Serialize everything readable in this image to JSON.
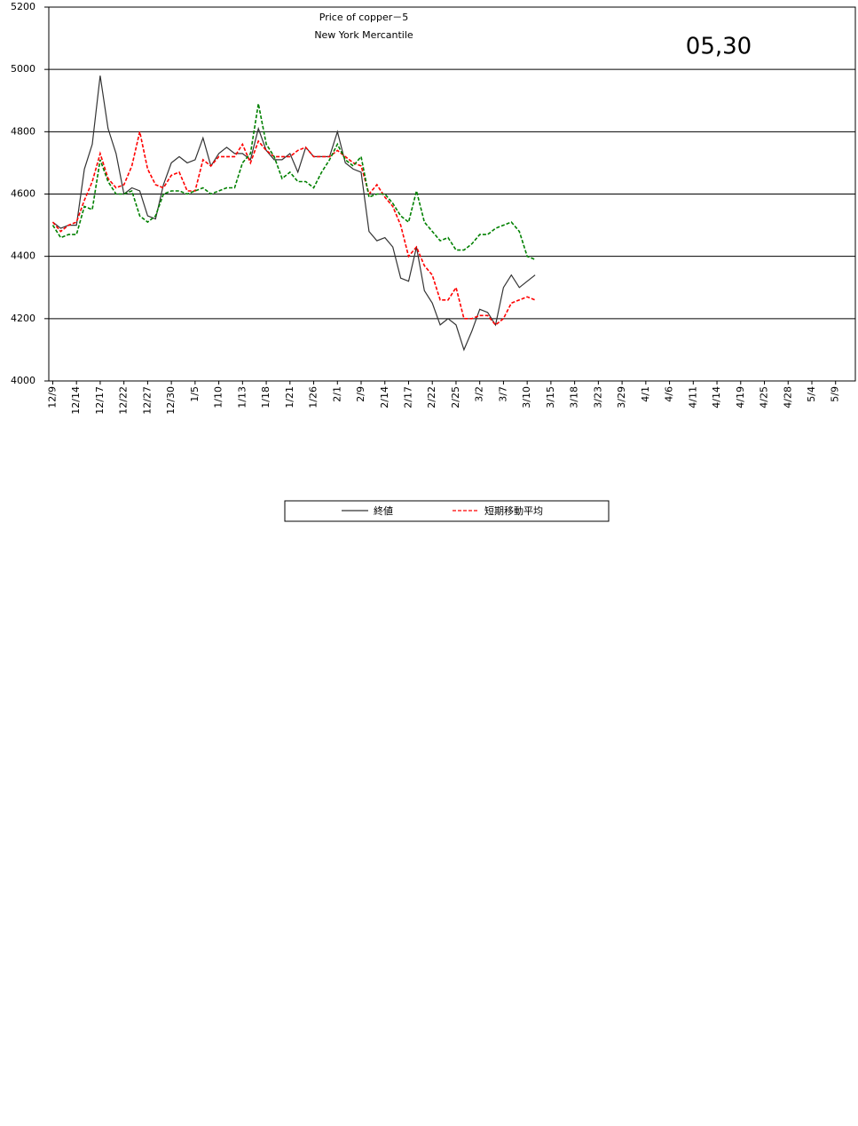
{
  "chart_data": {
    "type": "line",
    "title": "Price of copper－5",
    "subtitle": "New York Mercantile",
    "annotation": "05,30",
    "categories": [
      "12/9",
      null,
      null,
      "12/14",
      null,
      null,
      "12/17",
      null,
      null,
      "12/22",
      null,
      null,
      "12/27",
      null,
      null,
      "12/30",
      null,
      null,
      "1/5",
      null,
      null,
      "1/10",
      null,
      null,
      "1/13",
      null,
      null,
      "1/18",
      null,
      null,
      "1/21",
      null,
      null,
      "1/26",
      null,
      null,
      "2/1",
      null,
      null,
      "2/9",
      null,
      null,
      "2/14",
      null,
      null,
      "2/17",
      null,
      null,
      "2/22",
      null,
      null,
      "2/25",
      null,
      null,
      "3/2",
      null,
      null,
      "3/7",
      null,
      null,
      "3/10",
      null,
      null,
      "3/15",
      null,
      null,
      "3/18",
      null,
      null,
      "3/23",
      null,
      null,
      "3/29",
      null,
      null,
      "4/1",
      null,
      null,
      "4/6",
      null,
      null,
      "4/11",
      null,
      null,
      "4/14",
      null,
      null,
      "4/19",
      null,
      null,
      "4/25",
      null,
      null,
      "4/28",
      null,
      null,
      "5/4",
      null,
      null,
      "5/9",
      null,
      null
    ],
    "series": [
      {
        "name": "終値",
        "color": "#333333",
        "dash": false,
        "values": [
          4510,
          4490,
          4500,
          4500,
          4680,
          4760,
          4980,
          4810,
          4730,
          4600,
          4620,
          4610,
          4530,
          4520,
          4630,
          4700,
          4720,
          4700,
          4710,
          4780,
          4690,
          4730,
          4750,
          4730,
          4730,
          4710,
          4810,
          4740,
          4710,
          4710,
          4730,
          4670,
          4750,
          4720,
          4720,
          4720,
          4800,
          4700,
          4680,
          4670,
          4480,
          4450,
          4460,
          4430,
          4330,
          4320,
          4430,
          4290,
          4250,
          4180,
          4200,
          4180,
          4100,
          4160,
          4230,
          4220,
          4180,
          4300,
          4340,
          4300,
          4320,
          4340,
          null,
          null,
          null,
          null,
          null,
          null,
          null,
          null,
          null,
          null,
          null,
          null,
          null,
          null,
          null,
          null,
          null,
          null,
          null,
          null,
          null,
          null,
          null,
          null,
          null,
          null,
          null,
          null,
          null,
          null,
          null,
          null,
          null,
          null,
          null,
          null,
          null,
          null,
          null,
          null
        ]
      },
      {
        "name": "短期移動平均",
        "color": "#ff0000",
        "dash": true,
        "values": [
          4510,
          4480,
          4500,
          4510,
          4580,
          4640,
          4730,
          4650,
          4620,
          4630,
          4690,
          4800,
          4680,
          4630,
          4620,
          4660,
          4670,
          4610,
          4610,
          4710,
          4690,
          4720,
          4720,
          4720,
          4760,
          4700,
          4770,
          4740,
          4720,
          4720,
          4720,
          4740,
          4750,
          4720,
          4720,
          4720,
          4740,
          4720,
          4700,
          4690,
          4600,
          4630,
          4590,
          4560,
          4500,
          4400,
          4430,
          4370,
          4340,
          4260,
          4260,
          4300,
          4200,
          4200,
          4210,
          4210,
          4180,
          4200,
          4250,
          4260,
          4270,
          4260,
          null,
          null,
          null,
          null,
          null,
          null,
          null,
          null,
          null,
          null,
          null,
          null,
          null,
          null,
          null,
          null,
          null,
          null,
          null,
          null,
          null,
          null,
          null,
          null,
          null,
          null,
          null,
          null,
          null,
          null,
          null,
          null,
          null,
          null,
          null,
          null,
          null,
          null,
          null,
          null
        ]
      },
      {
        "color": "#008000",
        "dash": true,
        "values": [
          4500,
          4460,
          4470,
          4470,
          4560,
          4550,
          4710,
          4640,
          4600,
          4600,
          4610,
          4530,
          4510,
          4530,
          4600,
          4610,
          4610,
          4600,
          4610,
          4620,
          4600,
          4610,
          4620,
          4620,
          4700,
          4730,
          4890,
          4760,
          4720,
          4650,
          4670,
          4640,
          4640,
          4620,
          4670,
          4710,
          4760,
          4710,
          4690,
          4720,
          4590,
          4600,
          4600,
          4570,
          4530,
          4510,
          4610,
          4510,
          4480,
          4450,
          4460,
          4420,
          4420,
          4440,
          4470,
          4470,
          4490,
          4500,
          4510,
          4480,
          4400,
          4390,
          null,
          null,
          null,
          null,
          null,
          null,
          null,
          null,
          null,
          null,
          null,
          null,
          null,
          null,
          null,
          null,
          null,
          null,
          null,
          null,
          null,
          null,
          null,
          null,
          null,
          null,
          null,
          null,
          null,
          null,
          null,
          null,
          null,
          null,
          null,
          null,
          null,
          null,
          null,
          null
        ]
      }
    ],
    "ylim": [
      4000,
      5200
    ],
    "yticks": [
      4000,
      4200,
      4400,
      4600,
      4800,
      5000,
      5200
    ],
    "grid": true
  }
}
